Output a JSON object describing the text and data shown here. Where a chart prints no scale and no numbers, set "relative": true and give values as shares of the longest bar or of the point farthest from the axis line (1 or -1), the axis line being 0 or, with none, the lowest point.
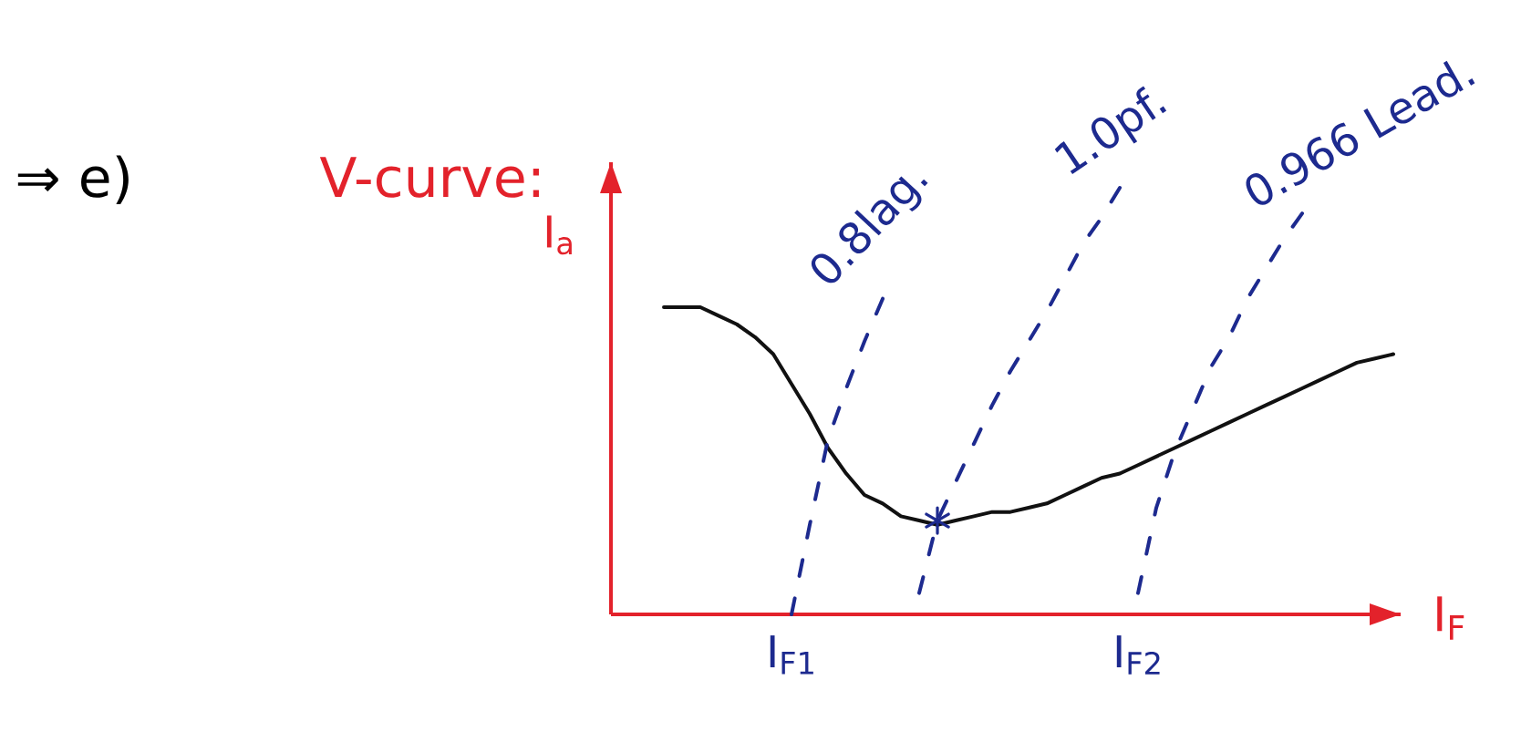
{
  "chart_data": {
    "type": "line",
    "title": "V-curve:",
    "xlabel": "I$_{F}$",
    "ylabel": "I$_{a}$",
    "relative": true,
    "annotations": [
      "⇒ e)"
    ],
    "categories": [
      null,
      null,
      null,
      null,
      null,
      null,
      null,
      "I$_{F1}$",
      null,
      null,
      null,
      null,
      null,
      null,
      null,
      null,
      null,
      null,
      null,
      null,
      null,
      null,
      null,
      null,
      null,
      null,
      "I$_{F2}$",
      null,
      null,
      null,
      null,
      null,
      null,
      null,
      null,
      null,
      null,
      null,
      null,
      null,
      null
    ],
    "series": [
      {
        "color": "#111111",
        "line_style": "solid",
        "values": [
          0.72,
          0.72,
          0.72,
          0.7,
          0.68,
          0.65,
          0.61,
          0.54,
          0.47,
          0.39,
          0.33,
          0.28,
          0.26,
          0.23,
          0.22,
          0.21,
          0.22,
          0.23,
          0.24,
          0.24,
          0.25,
          0.26,
          0.28,
          0.3,
          0.32,
          0.33,
          0.35,
          0.37,
          0.39,
          0.41,
          0.43,
          0.45,
          0.47,
          0.49,
          0.51,
          0.53,
          0.55,
          0.57,
          0.59,
          0.6,
          0.61
        ]
      },
      {
        "name": "0.8lag.",
        "color": "#1d2a8f",
        "line_style": "dashed",
        "values": [
          null,
          null,
          null,
          null,
          null,
          null,
          null,
          0,
          0.21,
          0.41,
          0.53,
          0.64,
          0.74,
          null,
          null,
          null,
          null,
          null,
          null,
          null,
          null,
          null,
          null,
          null,
          null,
          null,
          null,
          null,
          null,
          null,
          null,
          null,
          null,
          null,
          null,
          null,
          null,
          null,
          null,
          null,
          null
        ]
      },
      {
        "name": "1.0pf.",
        "color": "#1d2a8f",
        "line_style": "dashed",
        "values": [
          null,
          null,
          null,
          null,
          null,
          null,
          null,
          null,
          null,
          null,
          null,
          null,
          null,
          null,
          0.05,
          0.22,
          0.31,
          0.4,
          0.49,
          0.57,
          0.64,
          0.71,
          0.79,
          0.87,
          0.93,
          1.0,
          null,
          null,
          null,
          null,
          null,
          null,
          null,
          null,
          null,
          null,
          null,
          null,
          null,
          null,
          null
        ]
      },
      {
        "name": "0.966 Lead.",
        "color": "#1d2a8f",
        "line_style": "dashed",
        "values": [
          null,
          null,
          null,
          null,
          null,
          null,
          null,
          null,
          null,
          null,
          null,
          null,
          null,
          null,
          null,
          null,
          null,
          null,
          null,
          null,
          null,
          null,
          null,
          null,
          null,
          null,
          0.05,
          0.25,
          0.38,
          0.48,
          0.58,
          0.65,
          0.74,
          0.81,
          0.88,
          0.94,
          null,
          null,
          null,
          null,
          null
        ]
      },
      {
        "type": "scatter",
        "marker": "cross",
        "color": "#1d2a8f",
        "values": [
          null,
          null,
          null,
          null,
          null,
          null,
          null,
          null,
          null,
          null,
          null,
          null,
          null,
          null,
          null,
          0.22,
          null,
          null,
          null,
          null,
          null,
          null,
          null,
          null,
          null,
          null,
          null,
          null,
          null,
          null,
          null,
          null,
          null,
          null,
          null,
          null,
          null,
          null,
          null,
          null,
          null
        ]
      }
    ]
  }
}
